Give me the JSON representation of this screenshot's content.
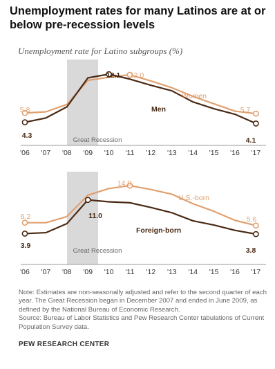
{
  "title": "Unemployment rates for many Latinos are at or below pre-recession levels",
  "subtitle": "Unemployment rate for Latino subgroups (%)",
  "chart_data": [
    {
      "type": "line",
      "x": [
        "'06",
        "'07",
        "'08",
        "'09",
        "'10",
        "'11",
        "'12",
        "'13",
        "'14",
        "'15",
        "'16",
        "'17"
      ],
      "shaded_region": {
        "label": "Great Recession",
        "from": "Dec 2007",
        "to": "Jun 2009"
      },
      "series": [
        {
          "name": "Women",
          "color": "#e0a070",
          "values": [
            5.8,
            6.0,
            7.2,
            11.1,
            11.6,
            12.0,
            11.0,
            9.9,
            8.5,
            7.3,
            6.1,
            5.7
          ],
          "labels": [
            {
              "index": 0,
              "text": "5.8"
            },
            {
              "index": 5,
              "text": "12.0"
            },
            {
              "index": 11,
              "text": "5.7"
            }
          ]
        },
        {
          "name": "Men",
          "color": "#4a2a14",
          "values": [
            4.3,
            5.0,
            6.8,
            11.5,
            12.1,
            11.3,
            10.3,
            9.4,
            7.6,
            6.5,
            5.6,
            4.1
          ],
          "labels": [
            {
              "index": 0,
              "text": "4.3"
            },
            {
              "index": 4,
              "text": "12.1"
            },
            {
              "index": 11,
              "text": "4.1"
            }
          ]
        }
      ]
    },
    {
      "type": "line",
      "x": [
        "'06",
        "'07",
        "'08",
        "'09",
        "'10",
        "'11",
        "'12",
        "'13",
        "'14",
        "'15",
        "'16",
        "'17"
      ],
      "shaded_region": {
        "label": "Great Recession",
        "from": "Dec 2007",
        "to": "Jun 2009"
      },
      "series": [
        {
          "name": "U.S.-born",
          "color": "#e0a070",
          "values": [
            6.2,
            6.2,
            7.5,
            12.0,
            13.4,
            14.0,
            13.2,
            12.2,
            10.2,
            8.6,
            6.7,
            5.6
          ],
          "labels": [
            {
              "index": 0,
              "text": "6.2"
            },
            {
              "index": 5,
              "text": "14.0"
            },
            {
              "index": 11,
              "text": "5.6"
            }
          ]
        },
        {
          "name": "Foreign-born",
          "color": "#4a2a14",
          "values": [
            3.9,
            4.1,
            6.0,
            11.0,
            10.6,
            10.4,
            9.4,
            8.3,
            6.6,
            5.7,
            4.6,
            3.8
          ],
          "labels": [
            {
              "index": 0,
              "text": "3.9"
            },
            {
              "index": 3,
              "text": "11.0"
            },
            {
              "index": 11,
              "text": "3.8"
            }
          ]
        }
      ]
    }
  ],
  "note": "Note: Estimates are non-seasonally adjusted and refer to the second quarter of each year. The Great Recession began in December 2007 and ended in June 2009, as defined by the National Bureau of Economic Research.",
  "source_note": "Source: Bureau of Labor Statistics and Pew Research Center tabulations of Current Population Survey data.",
  "source": "PEW RESEARCH CENTER"
}
